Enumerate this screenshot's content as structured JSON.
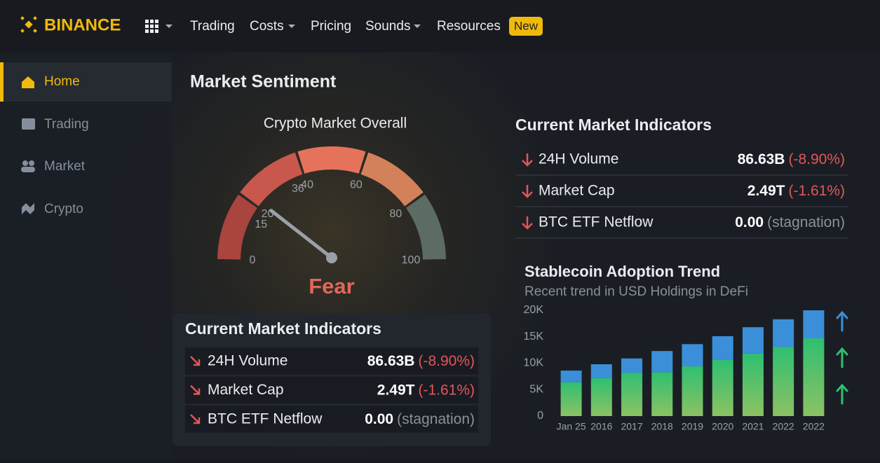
{
  "nav": {
    "brand": "BINANCE",
    "items": [
      "Trading",
      "Costs",
      "Pricing",
      "Sounds",
      "Resources"
    ],
    "badge": "New"
  },
  "sidebar": {
    "items": [
      "Home",
      "Trading",
      "Market",
      "Crypto"
    ]
  },
  "page_title": "Market Sentiment",
  "gauge": {
    "title": "Crypto Market Overall",
    "label": "Fear",
    "value": 22,
    "range": [
      0,
      100
    ],
    "ticks": [
      0,
      15,
      20,
      36,
      40,
      60,
      80,
      100
    ],
    "segment_colors": [
      "#a9443e",
      "#c8584d",
      "#e5735b",
      "#d3815a",
      "#5c6b64"
    ],
    "needle_color": "#9aa0a6",
    "label_color": "#e0675a"
  },
  "indicators": [
    {
      "title": "Current Market Indicators",
      "rows": [
        {
          "label": "24H Volume",
          "value": "86.63B",
          "change": "(-8.90%)",
          "change_color": "#e0575b"
        },
        {
          "label": "Market Cap",
          "value": "2.49T",
          "change": "(-1.61%)",
          "change_color": "#e0575b"
        },
        {
          "label": "BTC ETF Netflow",
          "value": "0.00",
          "change": "(stagnation)",
          "change_color": "#8a9099"
        }
      ]
    },
    {
      "title": "Current Market Indicators",
      "rows": [
        {
          "label": "24H Volume",
          "value": "86.63B",
          "change": "(-8.90%)",
          "change_color": "#e0575b"
        },
        {
          "label": "Market Cap",
          "value": "2.49T",
          "change": "(-1.61%)",
          "change_color": "#e0575b"
        },
        {
          "label": "BTC ETF Netflow",
          "value": "0.00",
          "change": "(stagnation)",
          "change_color": "#8a9099"
        }
      ]
    }
  ],
  "chart_data": {
    "type": "bar",
    "stacked": true,
    "title": "Stablecoin Adoption Trend",
    "subtitle": "Recent trend in USD Holdings in DeFi",
    "categories": [
      "Jan 25",
      "2016",
      "2017",
      "2018",
      "2019",
      "2020",
      "2021",
      "2022",
      "2022"
    ],
    "series": [
      {
        "color": "#2fbf71",
        "values": [
          6400,
          7200,
          8200,
          8300,
          9400,
          10600,
          11800,
          13100,
          14700
        ]
      },
      {
        "color": "#3b8fd9",
        "values": [
          2200,
          2600,
          2700,
          4000,
          4200,
          4500,
          5000,
          5200,
          5300
        ]
      }
    ],
    "ylim": [
      0,
      20000
    ],
    "yticks": [
      {
        "value": 0,
        "label": "0"
      },
      {
        "value": 5000,
        "label": "5K"
      },
      {
        "value": 10000,
        "label": "10K"
      },
      {
        "value": 15000,
        "label": "15K"
      },
      {
        "value": 20000,
        "label": "20K"
      }
    ]
  }
}
